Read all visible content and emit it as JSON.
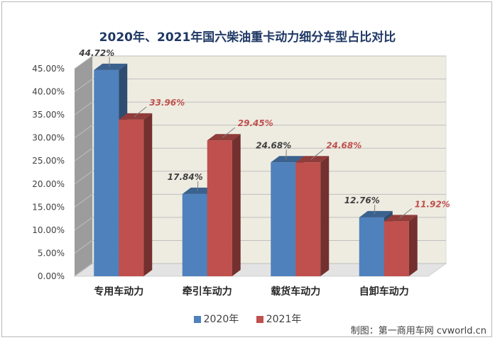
{
  "chart_data": {
    "type": "bar",
    "title": "2020年、2021年国六柴油重卡动力细分车型占比对比",
    "categories": [
      "专用车动力",
      "牵引车动力",
      "载货车动力",
      "自卸车动力"
    ],
    "series": [
      {
        "name": "2020年",
        "color": "#4f81bd",
        "values": [
          44.72,
          17.84,
          24.68,
          12.76
        ],
        "labels": [
          "44.72%",
          "17.84%",
          "24.68%",
          "12.76%"
        ]
      },
      {
        "name": "2021年",
        "color": "#c0504d",
        "values": [
          33.96,
          29.45,
          24.68,
          11.92
        ],
        "labels": [
          "33.96%",
          "29.45%",
          "24.68%",
          "11.92%"
        ]
      }
    ],
    "ylim": [
      0,
      45
    ],
    "yticks": [
      "0.00%",
      "5.00%",
      "10.00%",
      "15.00%",
      "20.00%",
      "25.00%",
      "30.00%",
      "35.00%",
      "40.00%",
      "45.00%"
    ],
    "grid": true,
    "legend_position": "bottom",
    "style": "3d-column"
  },
  "credit": "制图：第一商用车网 cvworld.cn"
}
